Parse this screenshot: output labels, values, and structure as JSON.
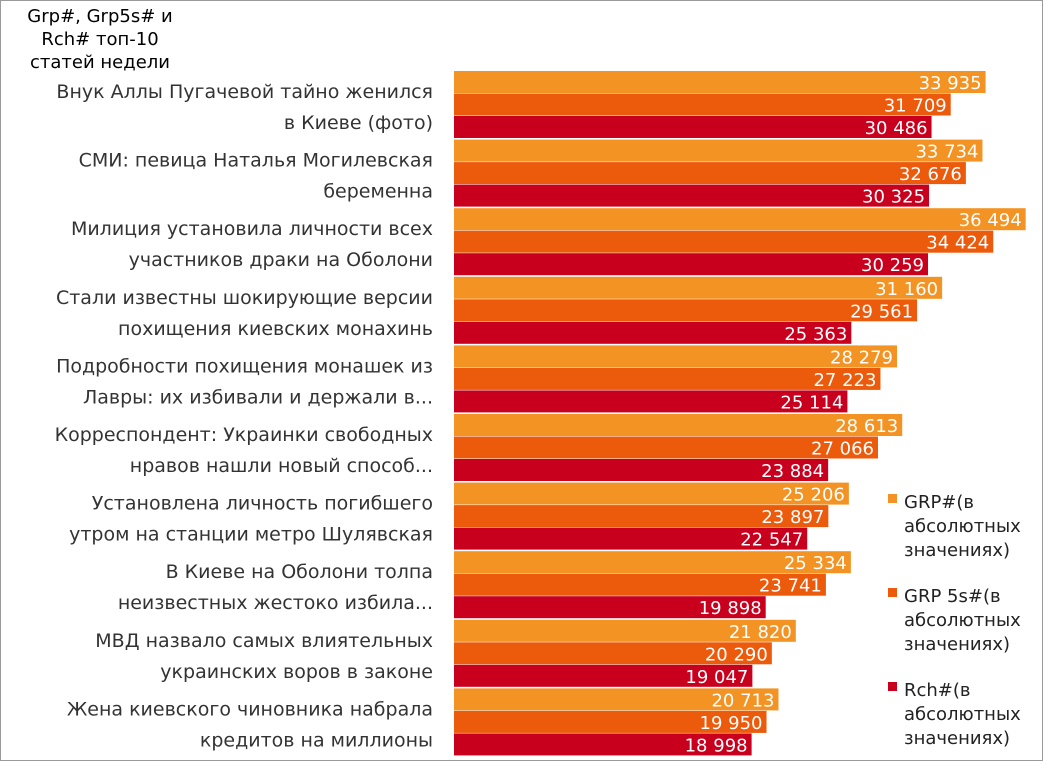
{
  "chart_data": {
    "type": "bar",
    "orientation": "horizontal",
    "title": "Grp#, Grp5s#  и\nRch# топ-10\nстатей недели",
    "categories": [
      [
        "Внук Аллы Пугачевой тайно женился",
        "в Киеве (фото)"
      ],
      [
        "СМИ: певица Наталья Могилевская",
        "беременна"
      ],
      [
        "Милиция установила личности всех",
        "участников драки на Оболони"
      ],
      [
        "Стали известны шокирующие версии",
        "похищения киевских монахинь"
      ],
      [
        "Подробности похищения монашек из",
        "Лавры: их избивали и держали в..."
      ],
      [
        "Корреспондент: Украинки свободных",
        "нравов нашли новый способ..."
      ],
      [
        "Установлена личность погибшего",
        "утром на станции метро Шулявская"
      ],
      [
        "В Киеве на Оболони толпа",
        "неизвестных жестоко избила..."
      ],
      [
        "МВД назвало самых влиятельных",
        "украинских воров в законе"
      ],
      [
        "Жена киевского чиновника набрала",
        "кредитов на миллионы"
      ]
    ],
    "series": [
      {
        "name": "GRP#(в абсолютных значениях)",
        "legend_lines": [
          "GRP#(в",
          "абсолютных",
          "значениях)"
        ],
        "color": "#f39323",
        "values": [
          33935,
          33734,
          36494,
          31160,
          28279,
          28613,
          25206,
          25334,
          21820,
          20713
        ],
        "labels": [
          "33 935",
          "33 734",
          "36 494",
          "31 160",
          "28 279",
          "28 613",
          "25 206",
          "25 334",
          "21 820",
          "20 713"
        ]
      },
      {
        "name": "GRP 5s#(в абсолютных значениях)",
        "legend_lines": [
          "GRP 5s#(в",
          "абсолютных",
          "значениях)"
        ],
        "color": "#ec5a0c",
        "values": [
          31709,
          32676,
          34424,
          29561,
          27223,
          27066,
          23897,
          23741,
          20290,
          19950
        ],
        "labels": [
          "31 709",
          "32 676",
          "34 424",
          "29 561",
          "27 223",
          "27 066",
          "23 897",
          "23 741",
          "20 290",
          "19 950"
        ]
      },
      {
        "name": "Rch#(в абсолютных значениях)",
        "legend_lines": [
          "Rch#(в",
          "абсолютных",
          "значениях)"
        ],
        "color": "#c8001e",
        "values": [
          30486,
          30325,
          30259,
          25363,
          25114,
          23884,
          22547,
          19898,
          19047,
          18998
        ],
        "labels": [
          "30 486",
          "30 325",
          "30 259",
          "25 363",
          "25 114",
          "23 884",
          "22 547",
          "19 898",
          "19 047",
          "18 998"
        ]
      }
    ],
    "xlim": [
      0,
      40000
    ],
    "legend_position": "right",
    "grid": false
  }
}
